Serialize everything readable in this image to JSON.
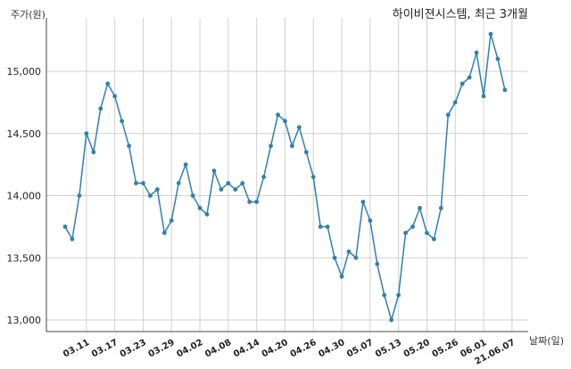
{
  "chart_data": {
    "type": "line",
    "title": "하이비젼시스템, 최근 3개월",
    "xlabel": "날짜(일)",
    "ylabel": "주가(원)",
    "ylim": [
      12900,
      15500
    ],
    "y_ticks": [
      13000,
      13500,
      14000,
      14500,
      15000
    ],
    "y_tick_labels": [
      "13,000",
      "13,500",
      "14,000",
      "14,500",
      "15,000"
    ],
    "x_tick_labels": [
      "03.11",
      "03.17",
      "03.23",
      "03.29",
      "04.02",
      "04.08",
      "04.14",
      "04.20",
      "04.26",
      "04.30",
      "05.07",
      "05.13",
      "05.20",
      "05.26",
      "06.01",
      "21.06.07"
    ],
    "x_tick_index": [
      3,
      7,
      11,
      15,
      19,
      23,
      27,
      31,
      35,
      39,
      43,
      47,
      51,
      55,
      59,
      63
    ],
    "grid": true,
    "color": "#2f7fb0",
    "series": [
      {
        "values": [
          13750,
          13650,
          14000,
          14500,
          14350,
          14700,
          14900,
          14800,
          14600,
          14400,
          14100,
          14100,
          14000,
          14050,
          13700,
          13800,
          14100,
          14250,
          14000,
          13900,
          13850,
          14200,
          14050,
          14100,
          14050,
          14100,
          13950,
          13950,
          14150,
          14400,
          14650,
          14600,
          14400,
          14550,
          14350,
          14150,
          13750,
          13750,
          13500,
          13350,
          13550,
          13500,
          13950,
          13800,
          13450,
          13200,
          13000,
          13200,
          13700,
          13750,
          13900,
          13700,
          13650,
          13900,
          14650,
          14750,
          14900,
          14950,
          15150,
          14800,
          15300,
          15100,
          14850
        ]
      }
    ]
  }
}
